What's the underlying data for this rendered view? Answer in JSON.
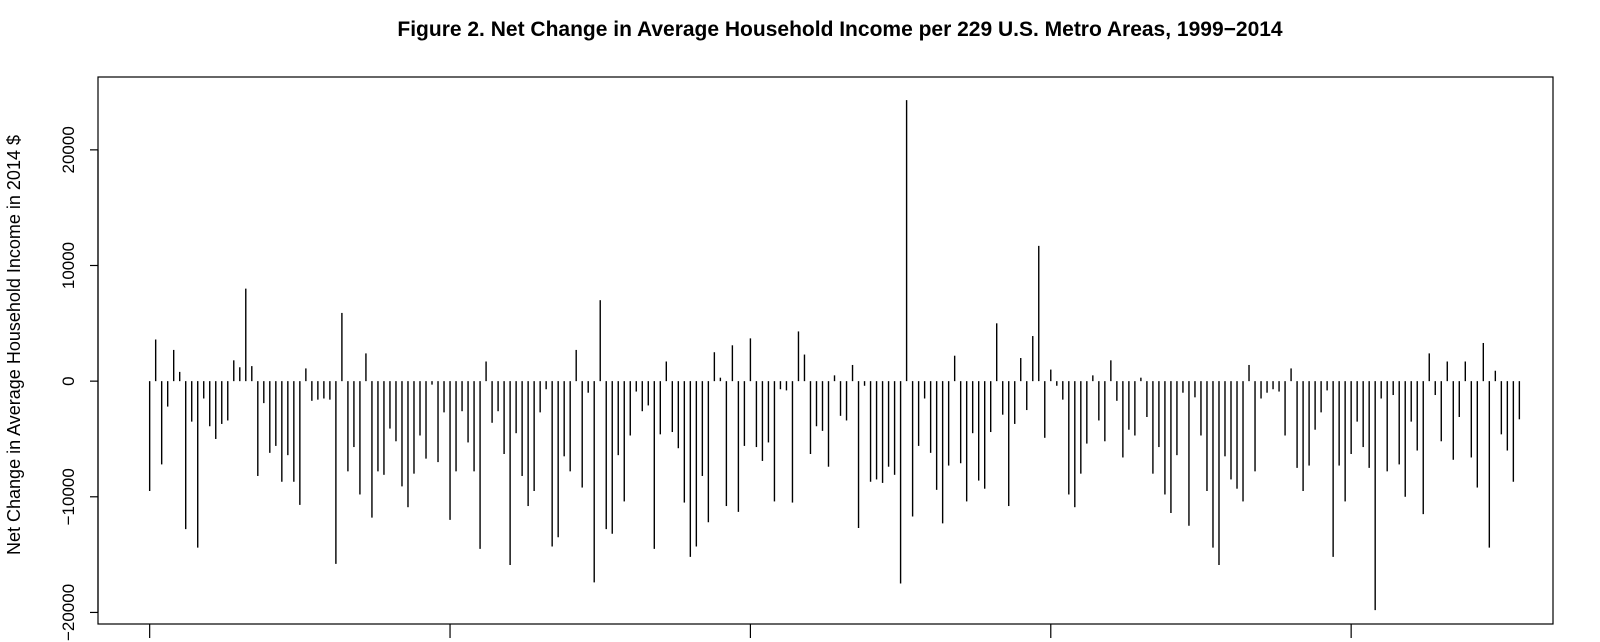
{
  "chart_data": {
    "type": "bar",
    "title": "Figure 2. Net Change in Average Household Income per 229 U.S. Metro Areas, 1999−2014",
    "xlabel": "",
    "ylabel": "Net Change in Average Household Income in 2014 $",
    "ylim": [
      -21000,
      26300
    ],
    "xlim": [
      -7.6,
      234.6
    ],
    "y_ticks": [
      -20000,
      -10000,
      0,
      10000,
      20000
    ],
    "y_tick_labels": [
      "−20000",
      "−10000",
      "0",
      "10000",
      "20000"
    ],
    "x_ticks": [
      1,
      51,
      101,
      151,
      201
    ],
    "grid": false,
    "legend": "none",
    "bar_style": "vertical lines from zero",
    "colors": {
      "bar": "#000000",
      "axis": "#000000",
      "background": "#ffffff"
    },
    "values": [
      -9500,
      3600,
      -7200,
      -2200,
      2700,
      800,
      -12800,
      -3500,
      -14400,
      -1500,
      -3900,
      -5000,
      -3700,
      -3400,
      1800,
      1200,
      8000,
      1300,
      -8200,
      -1900,
      -6200,
      -5600,
      -8700,
      -6400,
      -8700,
      -10700,
      1100,
      -1700,
      -1600,
      -1500,
      -1600,
      -15800,
      5900,
      -7800,
      -5700,
      -9800,
      2400,
      -11800,
      -7800,
      -8100,
      -4100,
      -5200,
      -9100,
      -10900,
      -8000,
      -4700,
      -6700,
      -300,
      -7000,
      -2700,
      -12000,
      -7800,
      -2600,
      -5300,
      -7800,
      -14500,
      1700,
      -3600,
      -2600,
      -6300,
      -15900,
      -4500,
      -8200,
      -10800,
      -9500,
      -2700,
      -700,
      -14300,
      -13500,
      -6500,
      -7800,
      2700,
      -9200,
      -1000,
      -17400,
      7000,
      -12800,
      -13200,
      -6400,
      -10400,
      -4700,
      -900,
      -2600,
      -2100,
      -14500,
      -4600,
      1700,
      -4400,
      -5800,
      -10500,
      -15200,
      -14300,
      -8200,
      -12200,
      2500,
      300,
      -10800,
      3100,
      -11300,
      -5600,
      3700,
      -5700,
      -6900,
      -5300,
      -10400,
      -700,
      -800,
      -10500,
      4300,
      2300,
      -6300,
      -3900,
      -4300,
      -7400,
      500,
      -3000,
      -3400,
      1400,
      -12700,
      -400,
      -8700,
      -8500,
      -8800,
      -7400,
      -8100,
      -17500,
      24300,
      -11700,
      -5600,
      -1500,
      -6200,
      -9400,
      -12300,
      -7300,
      2200,
      -7100,
      -10400,
      -4500,
      -8600,
      -9300,
      -4400,
      5000,
      -2900,
      -10800,
      -3700,
      2000,
      -2500,
      3900,
      11700,
      -4900,
      1000,
      -400,
      -1600,
      -9800,
      -10900,
      -8000,
      -5400,
      500,
      -3400,
      -5200,
      1800,
      -1700,
      -6600,
      -4200,
      -4700,
      300,
      -3100,
      -8000,
      -5700,
      -9800,
      -11400,
      -6400,
      -1000,
      -12500,
      -1400,
      -4700,
      -9500,
      -14400,
      -15900,
      -6500,
      -8500,
      -9300,
      -10400,
      1400,
      -7800,
      -1500,
      -1000,
      -700,
      -900,
      -4700,
      1100,
      -7500,
      -9500,
      -7300,
      -4200,
      -2700,
      -800,
      -15200,
      -7300,
      -10400,
      -6300,
      -3500,
      -5700,
      -7500,
      -19800,
      -1500,
      -7800,
      -1200,
      -7200,
      -10000,
      -3500,
      -6000,
      -11500,
      2400,
      -1200,
      -5200,
      1700,
      -6800,
      -3100,
      1700,
      -6600,
      -9200,
      3300,
      -14400,
      900,
      -4600,
      -6000,
      -8700,
      -3300
    ]
  }
}
